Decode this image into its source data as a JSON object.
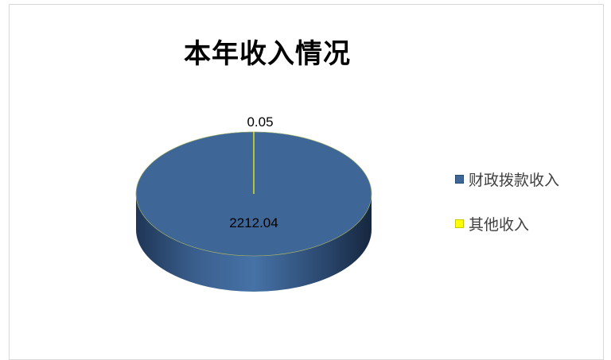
{
  "chart_data": {
    "type": "pie",
    "title": "本年收入情况",
    "categories": [
      "财政拨款收入",
      "其他收入"
    ],
    "values": [
      2212.04,
      0.05
    ],
    "data_labels": [
      "2212.04",
      "0.05"
    ],
    "colors": [
      "#3E6697",
      "#FFFF00"
    ],
    "legend_position": "right",
    "style": "3d"
  }
}
